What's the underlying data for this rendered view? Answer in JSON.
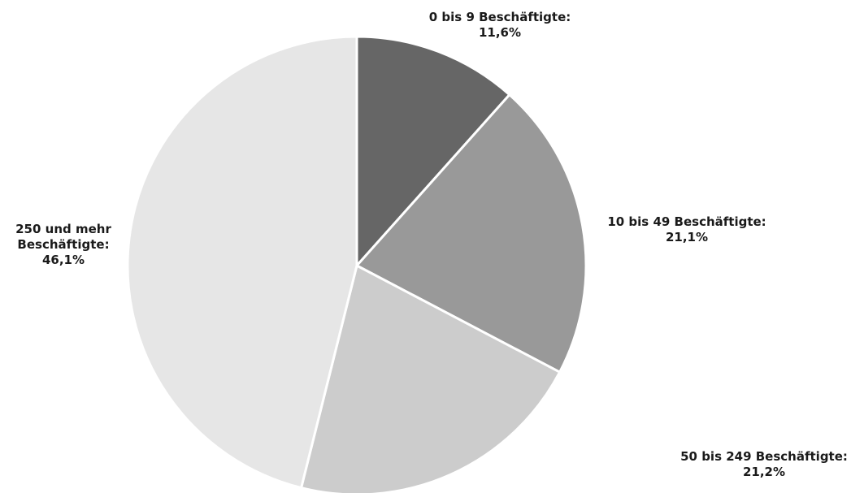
{
  "chart_data": {
    "type": "pie",
    "title": "",
    "slices": [
      {
        "label": "0 bis 9 Beschäftigte:",
        "label_lines": [
          "0 bis 9 Beschäftigte:"
        ],
        "value": 11.6,
        "value_text": "11,6%",
        "color": "#666666"
      },
      {
        "label": "10 bis 49 Beschäftigte:",
        "label_lines": [
          "10 bis 49 Beschäftigte:"
        ],
        "value": 21.1,
        "value_text": "21,1%",
        "color": "#999999"
      },
      {
        "label": "50 bis 249 Beschäftigte:",
        "label_lines": [
          "50 bis 249 Beschäftigte:"
        ],
        "value": 21.2,
        "value_text": "21,2%",
        "color": "#cccccc"
      },
      {
        "label": "250 und mehr Beschäftigte:",
        "label_lines": [
          "250 und mehr",
          "Beschäftigte:"
        ],
        "value": 46.1,
        "value_text": "46,1%",
        "color": "#e6e6e6"
      }
    ],
    "start_angle": "12 o'clock",
    "direction": "clockwise",
    "legend": "none"
  }
}
